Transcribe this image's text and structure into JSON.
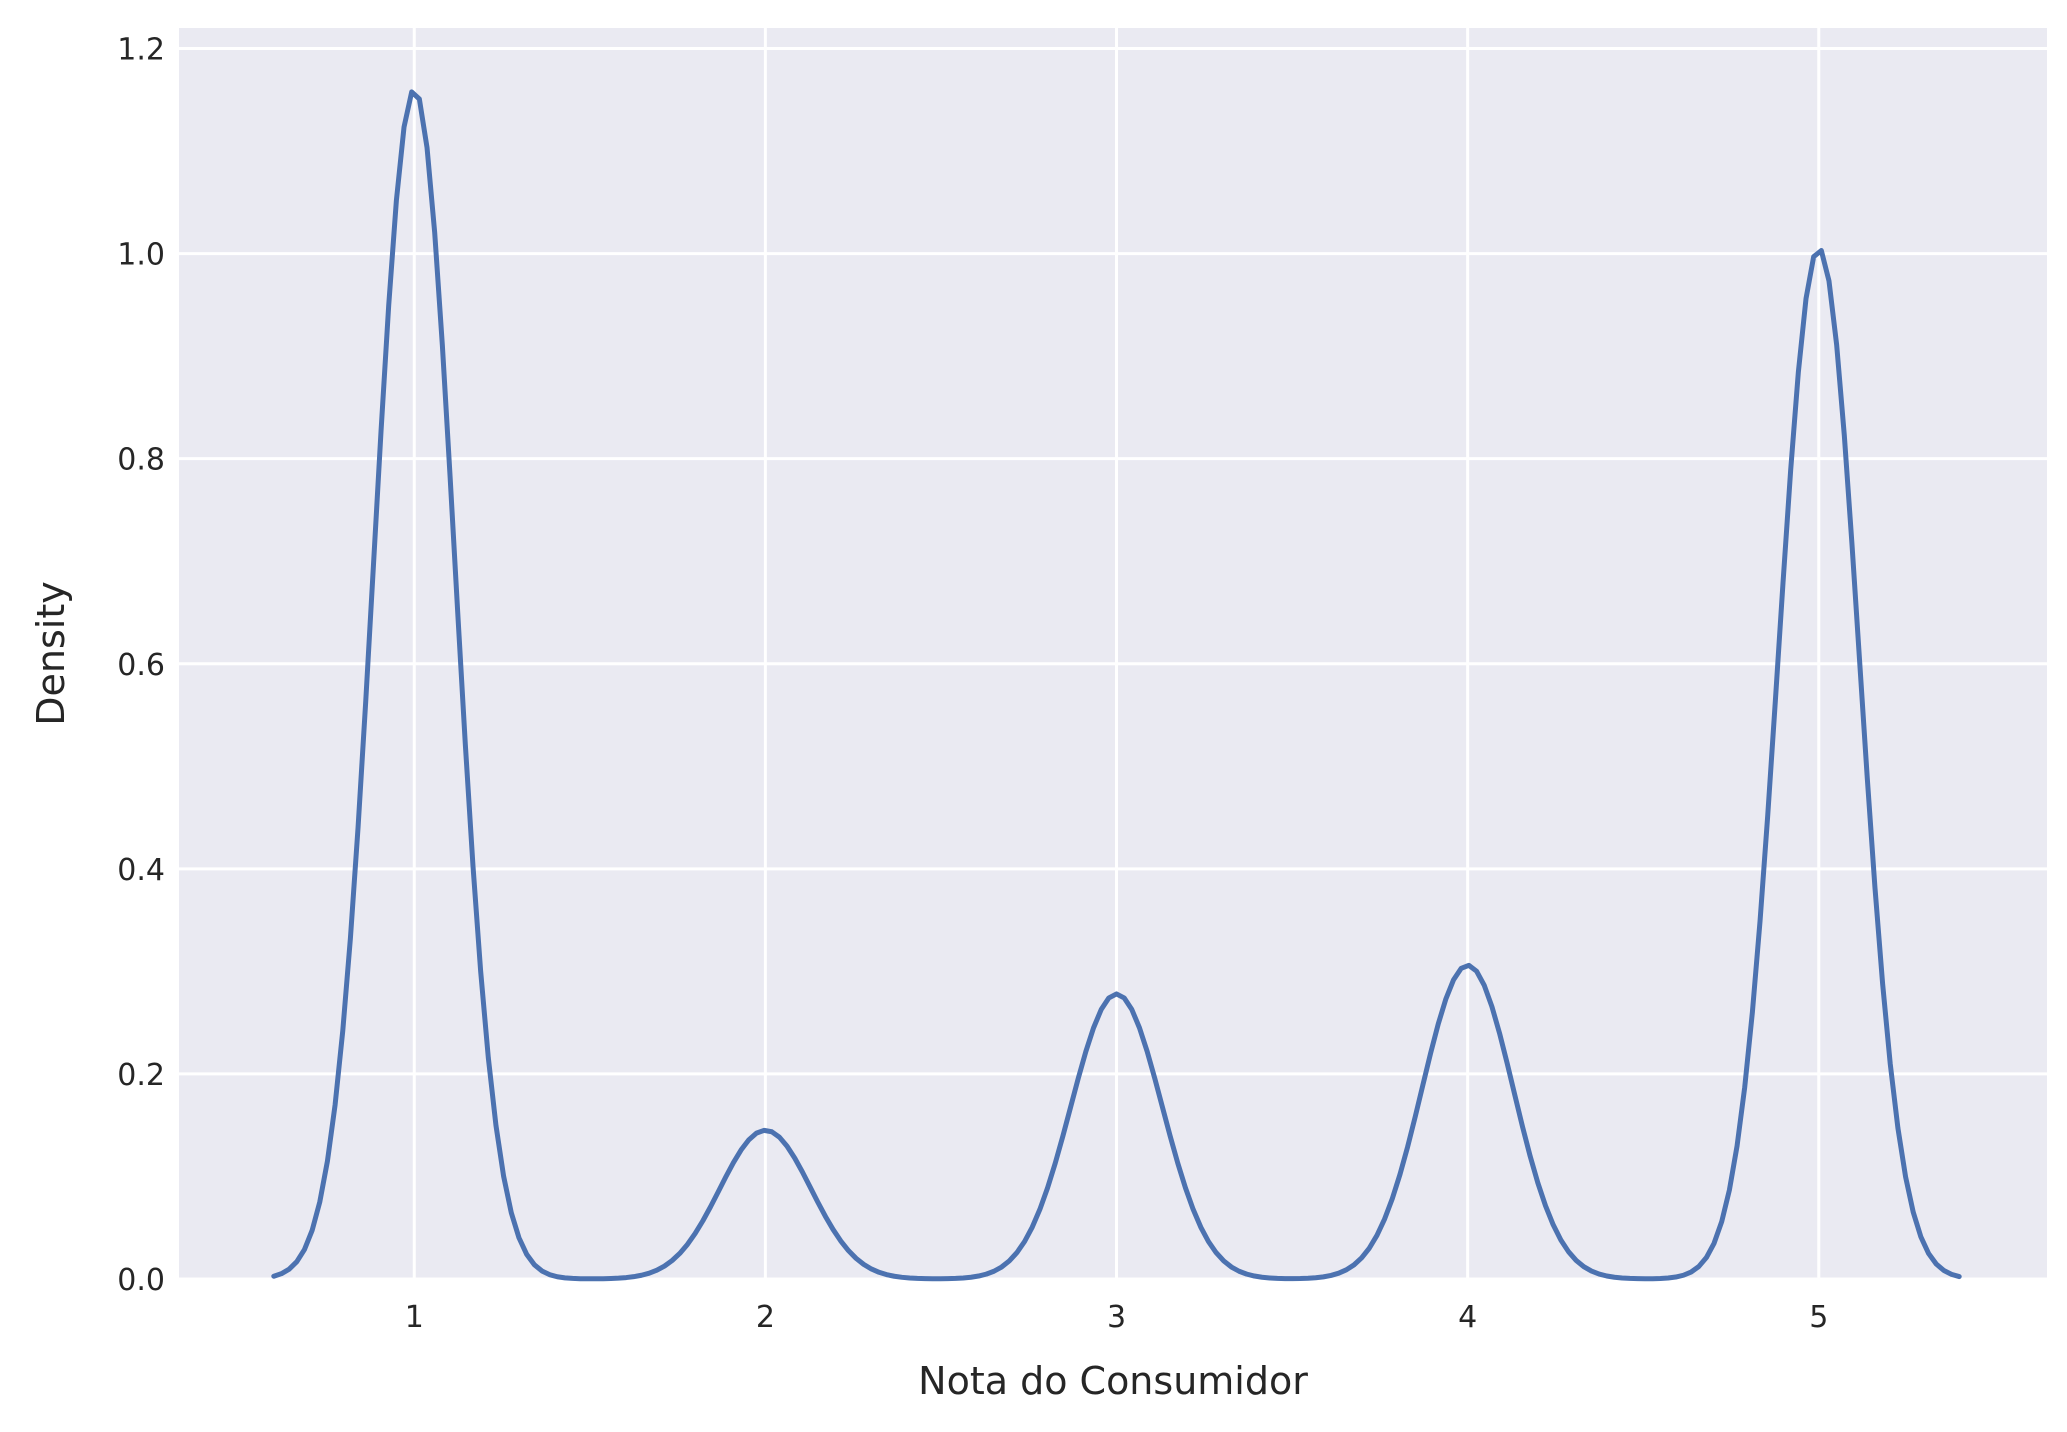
{
  "chart_data": {
    "type": "line",
    "title": "",
    "xlabel": "Nota do Consumidor",
    "ylabel": "Density",
    "xlim": [
      0.33,
      5.65
    ],
    "ylim": [
      0,
      1.22
    ],
    "xticks": [
      1,
      2,
      3,
      4,
      5
    ],
    "xtick_labels": [
      "1",
      "2",
      "3",
      "4",
      "5"
    ],
    "yticks": [
      0.0,
      0.2,
      0.4,
      0.6,
      0.8,
      1.0,
      1.2
    ],
    "ytick_labels": [
      "0.0",
      "0.2",
      "0.4",
      "0.6",
      "0.8",
      "1.0",
      "1.2"
    ],
    "grid": true,
    "colors": {
      "background": "#eaeaf2",
      "grid": "#ffffff",
      "line": "#4c72b0"
    },
    "series": [
      {
        "x_range": [
          0.6,
          5.4
        ],
        "peaks": [
          {
            "x": 1,
            "y": 1.16,
            "sigma": 0.115
          },
          {
            "x": 2,
            "y": 0.145,
            "sigma": 0.13
          },
          {
            "x": 3,
            "y": 0.278,
            "sigma": 0.13
          },
          {
            "x": 4,
            "y": 0.306,
            "sigma": 0.13
          },
          {
            "x": 5,
            "y": 1.005,
            "sigma": 0.115
          }
        ]
      }
    ]
  }
}
